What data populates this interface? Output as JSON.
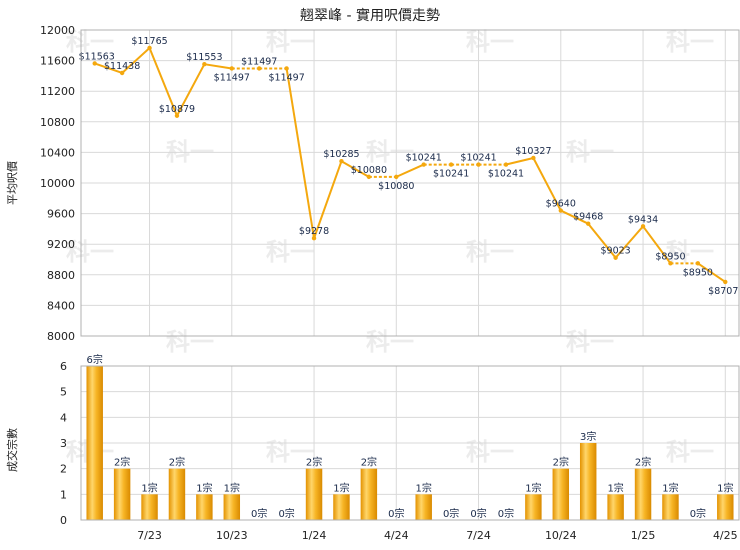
{
  "chart_data": [
    {
      "type": "line",
      "title": "翹翠峰 - 實用呎價走勢",
      "ylabel": "平均呎價",
      "ylim": [
        8000,
        12000
      ],
      "yticks": [
        8000,
        8400,
        8800,
        9200,
        9600,
        10000,
        10400,
        10800,
        11200,
        11600,
        12000
      ],
      "x_count": 24,
      "xtick_labels": [
        {
          "index": 2,
          "label": "7/23"
        },
        {
          "index": 5,
          "label": "10/23"
        },
        {
          "index": 8,
          "label": "1/24"
        },
        {
          "index": 11,
          "label": "4/24"
        },
        {
          "index": 14,
          "label": "7/24"
        },
        {
          "index": 17,
          "label": "10/24"
        },
        {
          "index": 20,
          "label": "1/25"
        },
        {
          "index": 23,
          "label": "4/25"
        }
      ],
      "points": [
        {
          "x": 0,
          "y": 11563,
          "label": "$11563",
          "pos": "above"
        },
        {
          "x": 1,
          "y": 11438,
          "label": "$11438",
          "pos": "above"
        },
        {
          "x": 2,
          "y": 11765,
          "label": "$11765",
          "pos": "above"
        },
        {
          "x": 3,
          "y": 10879,
          "label": "$10879",
          "pos": "above"
        },
        {
          "x": 4,
          "y": 11553,
          "label": "$11553",
          "pos": "above"
        },
        {
          "x": 5,
          "y": 11497,
          "label": "$11497",
          "pos": "below"
        },
        {
          "x": 6,
          "y": 11497,
          "label": "$11497",
          "pos": "above"
        },
        {
          "x": 7,
          "y": 11497,
          "label": "$11497",
          "pos": "below"
        },
        {
          "x": 8,
          "y": 9278,
          "label": "$9278",
          "pos": "above"
        },
        {
          "x": 9,
          "y": 10285,
          "label": "$10285",
          "pos": "above"
        },
        {
          "x": 10,
          "y": 10080,
          "label": "$10080",
          "pos": "above"
        },
        {
          "x": 11,
          "y": 10080,
          "label": "$10080",
          "pos": "below"
        },
        {
          "x": 12,
          "y": 10241,
          "label": "$10241",
          "pos": "above"
        },
        {
          "x": 13,
          "y": 10241,
          "label": "$10241",
          "pos": "below"
        },
        {
          "x": 14,
          "y": 10241,
          "label": "$10241",
          "pos": "above"
        },
        {
          "x": 15,
          "y": 10241,
          "label": "$10241",
          "pos": "below"
        },
        {
          "x": 16,
          "y": 10327,
          "label": "$10327",
          "pos": "above"
        },
        {
          "x": 17,
          "y": 9640,
          "label": "$9640",
          "pos": "above"
        },
        {
          "x": 18,
          "y": 9468,
          "label": "$9468",
          "pos": "above"
        },
        {
          "x": 19,
          "y": 9023,
          "label": "$9023",
          "pos": "above"
        },
        {
          "x": 20,
          "y": 9434,
          "label": "$9434",
          "pos": "above"
        },
        {
          "x": 21,
          "y": 8950,
          "label": "$8950",
          "pos": "above"
        },
        {
          "x": 22,
          "y": 8950,
          "label": "$8950",
          "pos": "below"
        },
        {
          "x": 23,
          "y": 8707,
          "label": "$8707",
          "pos": "below"
        }
      ],
      "dashed_segments": [
        [
          5,
          6
        ],
        [
          6,
          7
        ],
        [
          10,
          11
        ],
        [
          12,
          13
        ],
        [
          13,
          14
        ],
        [
          14,
          15
        ],
        [
          21,
          22
        ]
      ],
      "line_color": "#f4a80e"
    },
    {
      "type": "bar",
      "ylabel": "成交宗數",
      "ylim": [
        0,
        6
      ],
      "yticks": [
        0,
        1,
        2,
        3,
        4,
        5,
        6
      ],
      "values": [
        6,
        2,
        1,
        2,
        1,
        1,
        0,
        0,
        2,
        1,
        2,
        0,
        1,
        0,
        0,
        0,
        1,
        2,
        3,
        1,
        2,
        1,
        0,
        1
      ],
      "value_labels": [
        "6宗",
        "2宗",
        "1宗",
        "2宗",
        "1宗",
        "1宗",
        "0宗",
        "0宗",
        "2宗",
        "1宗",
        "2宗",
        "0宗",
        "1宗",
        "0宗",
        "0宗",
        "0宗",
        "1宗",
        "2宗",
        "3宗",
        "1宗",
        "2宗",
        "1宗",
        "0宗",
        "1宗"
      ],
      "bar_color": "#f5b21a"
    }
  ],
  "watermark": "科一"
}
